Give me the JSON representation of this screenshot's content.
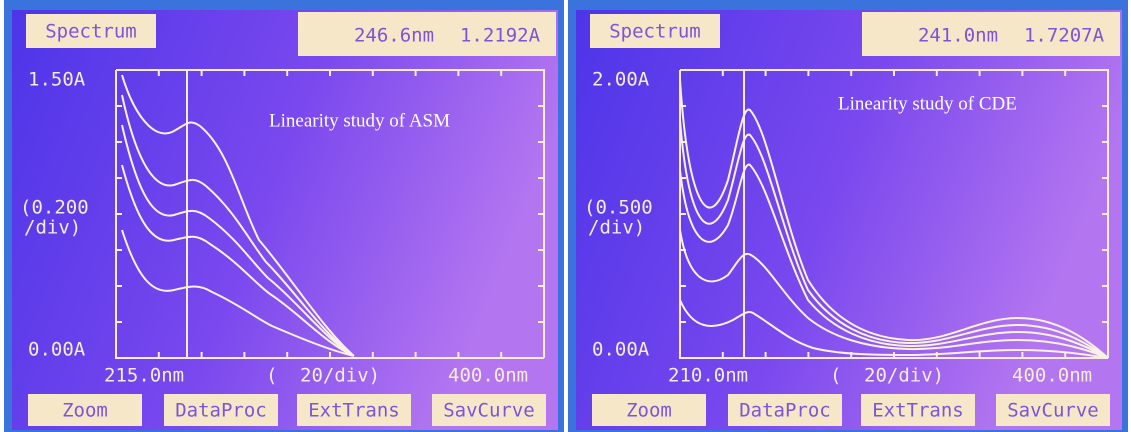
{
  "panels": [
    {
      "header": {
        "mode": "Spectrum",
        "wavelength": "246.6nm",
        "absorbance": "1.2192A"
      },
      "annotation": "Linearity study of ASM",
      "y_axis": {
        "top": "1.50A",
        "scale_1": "(0.200",
        "scale_2": "/div)",
        "bottom": "0.00A"
      },
      "x_axis": {
        "start": "215.0nm",
        "scale_open": "(",
        "scale": "20/div)",
        "end": "400.0nm"
      },
      "buttons": [
        "Zoom",
        "DataProc",
        "ExtTrans",
        "SavCurve"
      ]
    },
    {
      "header": {
        "mode": "Spectrum",
        "wavelength": "241.0nm",
        "absorbance": "1.7207A"
      },
      "annotation": "Linearity study of CDE",
      "y_axis": {
        "top": "2.00A",
        "scale_1": "(0.500",
        "scale_2": "/div)",
        "bottom": "0.00A"
      },
      "x_axis": {
        "start": "210.0nm",
        "scale_open": "(",
        "scale": "20/div)",
        "end": "400.0nm"
      },
      "buttons": [
        "Zoom",
        "DataProc",
        "ExtTrans",
        "SavCurve"
      ]
    }
  ]
}
